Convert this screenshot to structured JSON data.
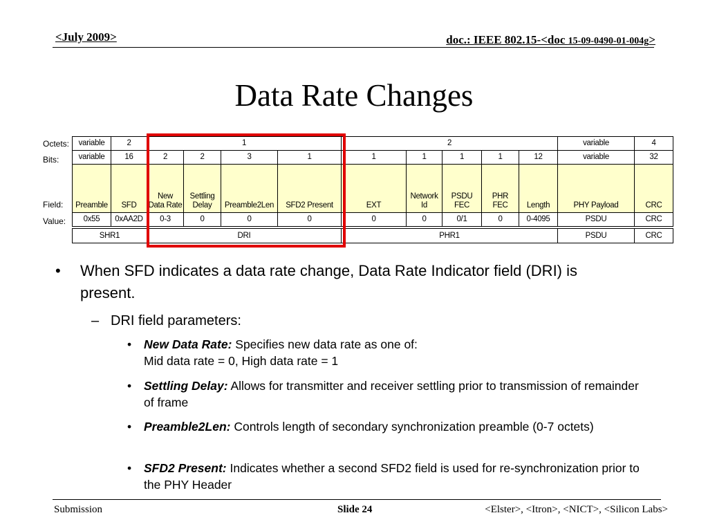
{
  "header": {
    "date": "<July 2009>",
    "doc_prefix": "doc.: IEEE 802.15-<doc ",
    "doc_number": "15-09-0490-01-004g",
    "doc_suffix": ">"
  },
  "title": "Data Rate Changes",
  "table": {
    "row_labels": [
      "Octets:",
      "Bits:",
      "Field:",
      "Value:"
    ],
    "octets": [
      "variable",
      "2",
      "1",
      "2",
      "variable",
      "4"
    ],
    "bits": [
      "variable",
      "16",
      "2",
      "2",
      "3",
      "1",
      "1",
      "1",
      "1",
      "1",
      "12",
      "variable",
      "32"
    ],
    "fields": [
      "Preamble",
      "SFD",
      "New\nData Rate",
      "Settling\nDelay",
      "Preamble2Len",
      "SFD2 Present",
      "EXT",
      "Network\nId",
      "PSDU\nFEC",
      "PHR\nFEC",
      "Length",
      "PHY Payload",
      "CRC"
    ],
    "values": [
      "0x55",
      "0xAA2D",
      "0-3",
      "0",
      "0",
      "0",
      "0",
      "0",
      "0/1",
      "0",
      "0-4095",
      "PSDU",
      "CRC"
    ],
    "groups": [
      "SHR1",
      "DRI",
      "PHR1",
      "PSDU",
      "CRC"
    ]
  },
  "bullets": {
    "main": "When SFD indicates a data rate change, Data Rate Indicator field (DRI) is present.",
    "sub": "DRI field parameters:",
    "items": [
      {
        "term": "New Data Rate:",
        "text": " Specifies new data rate as one of:",
        "line2": "Mid data rate = 0, High data rate = 1"
      },
      {
        "term": "Settling Delay:",
        "text": " Allows for transmitter and receiver settling prior to transmission of remainder of frame"
      },
      {
        "term": "Preamble2Len:",
        "text": " Controls length of secondary synchronization preamble (0-7 octets)"
      },
      {
        "term": "SFD2 Present:",
        "text": " Indicates whether a second SFD2 field is used for re-synchronization prior to the PHY Header"
      }
    ]
  },
  "footer": {
    "left": "Submission",
    "slide_label": "Slide 24",
    "right": "<Elster>, <Itron>, <NICT>, <Silicon Labs>"
  }
}
